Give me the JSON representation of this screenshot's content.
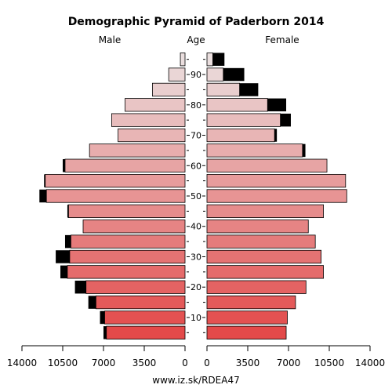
{
  "chart_data": {
    "type": "bar",
    "title": "Demographic Pyramid of Paderborn 2014",
    "left_label": "Male",
    "center_label": "Age",
    "right_label": "Female",
    "footer": "www.iz.sk/RDEA47",
    "age_groups": [
      "0-4",
      "5-9",
      "10-14",
      "15-19",
      "20-24",
      "25-29",
      "30-34",
      "35-39",
      "40-44",
      "45-49",
      "50-54",
      "55-59",
      "60-64",
      "65-69",
      "70-74",
      "75-79",
      "80-84",
      "85-89",
      "90+"
    ],
    "age_tick_labels": [
      "10",
      "20",
      "30",
      "40",
      "50",
      "60",
      "70",
      "80",
      "90"
    ],
    "x_tick_labels_male": [
      "14000",
      "10500",
      "7000",
      "3500",
      "0"
    ],
    "x_tick_labels_female": [
      "0",
      "3500",
      "7000",
      "10500",
      "14000"
    ],
    "xlim": [
      0,
      14000
    ],
    "male_series": {
      "name": "Male",
      "base": [
        6750,
        6900,
        7650,
        8500,
        10100,
        9900,
        9800,
        8750,
        10000,
        11900,
        12000,
        10300,
        8200,
        5750,
        6300,
        5150,
        2800,
        1400,
        400
      ],
      "excess": [
        250,
        400,
        650,
        950,
        600,
        1200,
        500,
        0,
        100,
        600,
        100,
        200,
        0,
        0,
        0,
        0,
        0,
        0,
        0
      ]
    },
    "female_series": {
      "name": "Female",
      "base": [
        6800,
        6900,
        7600,
        8500,
        10000,
        9800,
        9300,
        8700,
        10000,
        12000,
        11900,
        10300,
        8200,
        5800,
        6300,
        5200,
        2800,
        1400,
        500
      ],
      "excess": [
        0,
        0,
        0,
        0,
        0,
        0,
        0,
        0,
        0,
        0,
        0,
        0,
        250,
        200,
        900,
        1600,
        1600,
        1800,
        1000
      ]
    },
    "colors": {
      "young": "#e34a4a",
      "old": "#eadede",
      "excess": "#000000",
      "axis": "#000000"
    }
  }
}
